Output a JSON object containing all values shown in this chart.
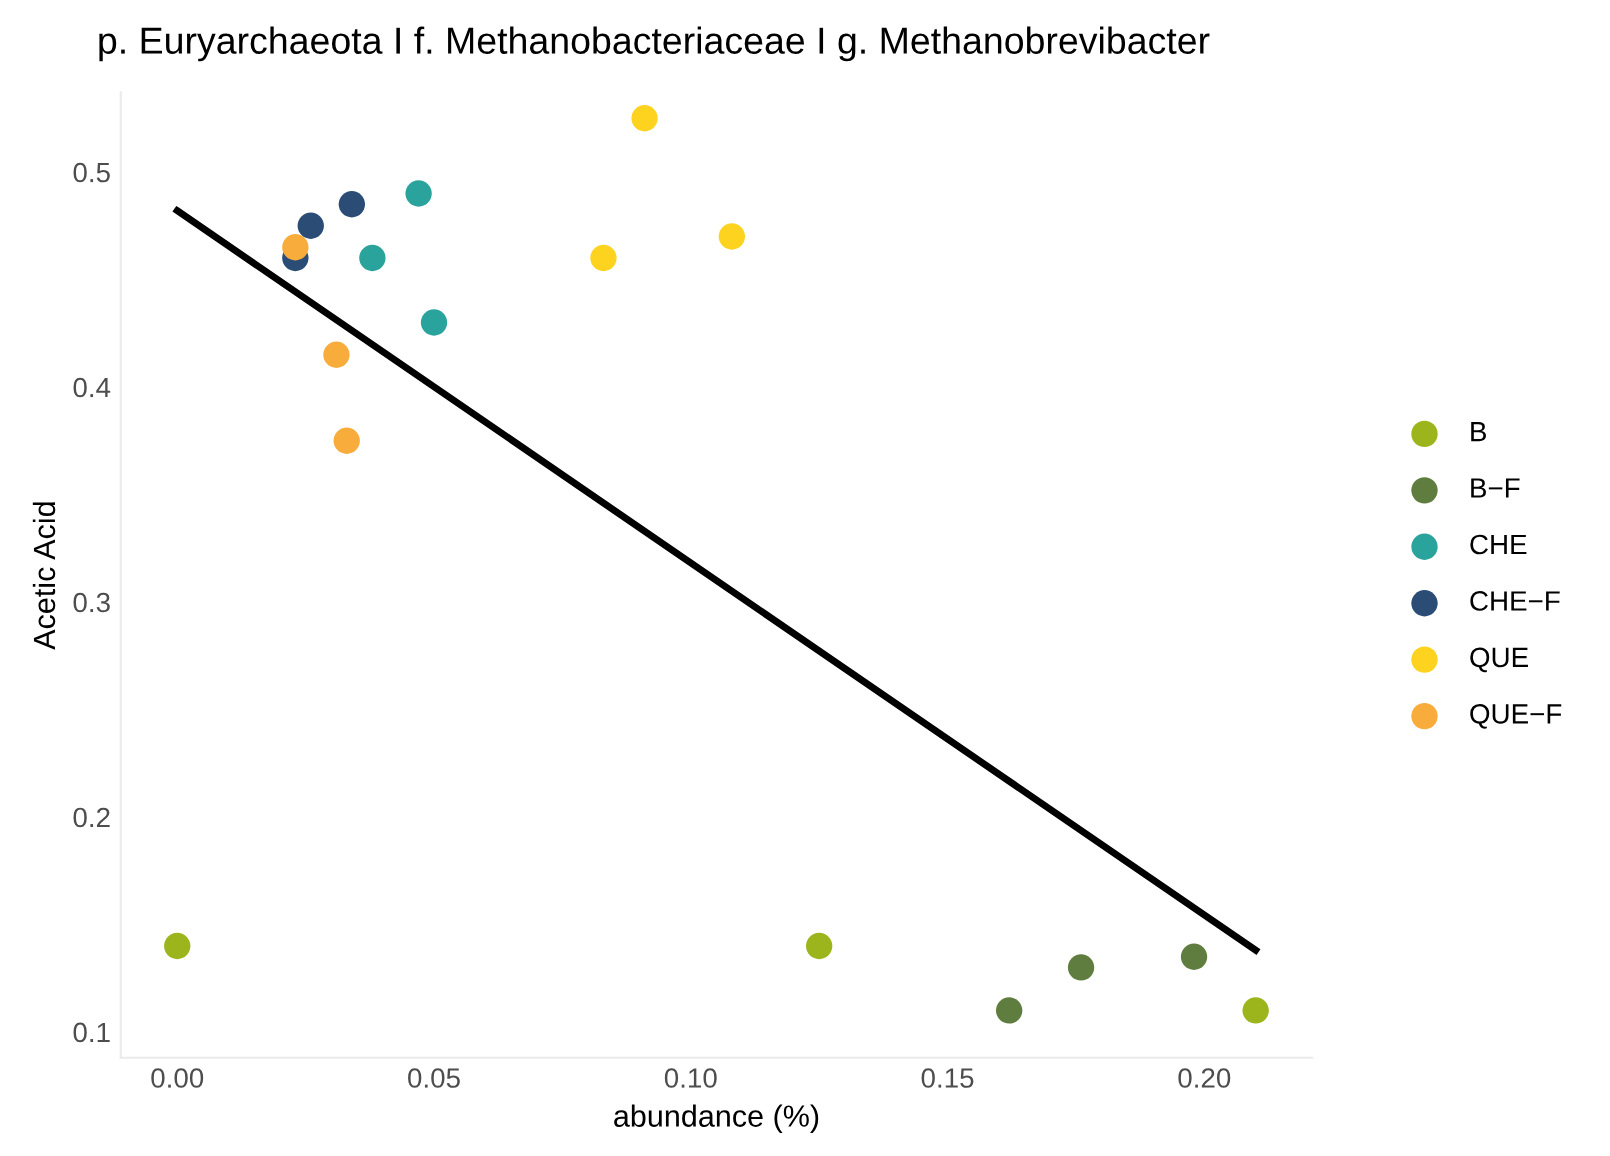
{
  "chart_data": {
    "type": "scatter",
    "title": "p. Euryarchaeota I f. Methanobacteriaceae I g. Methanobrevibacter",
    "xlabel": "abundance (%)",
    "ylabel": "Acetic Acid",
    "legend": "right",
    "grid": false,
    "marker": "circle",
    "xlim": [
      -0.011,
      0.221
    ],
    "ylim": [
      0.088,
      0.537
    ],
    "xticks": [
      {
        "value": 0,
        "label": "0.00"
      },
      {
        "value": 0.05,
        "label": "0.05"
      },
      {
        "value": 0.1,
        "label": "0.10"
      },
      {
        "value": 0.15,
        "label": "0.15"
      },
      {
        "value": 0.2,
        "label": "0.20"
      }
    ],
    "yticks": [
      0.1,
      0.2,
      0.3,
      0.4,
      0.5
    ],
    "series": [
      {
        "name": "B",
        "color": "#9cb51c",
        "x": [
          0.0,
          0.125,
          0.21
        ],
        "values": [
          0.14,
          0.14,
          0.11
        ]
      },
      {
        "name": "B−F",
        "color": "#5f7d3f",
        "x": [
          0.162,
          0.176,
          0.198
        ],
        "values": [
          0.11,
          0.13,
          0.135
        ]
      },
      {
        "name": "CHE",
        "color": "#2aa39c",
        "x": [
          0.047,
          0.038,
          0.05
        ],
        "values": [
          0.49,
          0.46,
          0.43
        ]
      },
      {
        "name": "CHE−F",
        "color": "#2b4c75",
        "x": [
          0.023,
          0.026,
          0.034
        ],
        "values": [
          0.46,
          0.475,
          0.485
        ]
      },
      {
        "name": "QUE",
        "color": "#fdd31f",
        "x": [
          0.091,
          0.083,
          0.108
        ],
        "values": [
          0.525,
          0.46,
          0.47
        ]
      },
      {
        "name": "QUE−F",
        "color": "#f7ac3c",
        "x": [
          0.023,
          0.031,
          0.033
        ],
        "values": [
          0.465,
          0.415,
          0.375
        ]
      },
      {
        "type": "line",
        "marker": "none",
        "color": "#000000",
        "x": [
          0.0,
          0.21
        ],
        "values": [
          0.482,
          0.138
        ]
      }
    ]
  }
}
